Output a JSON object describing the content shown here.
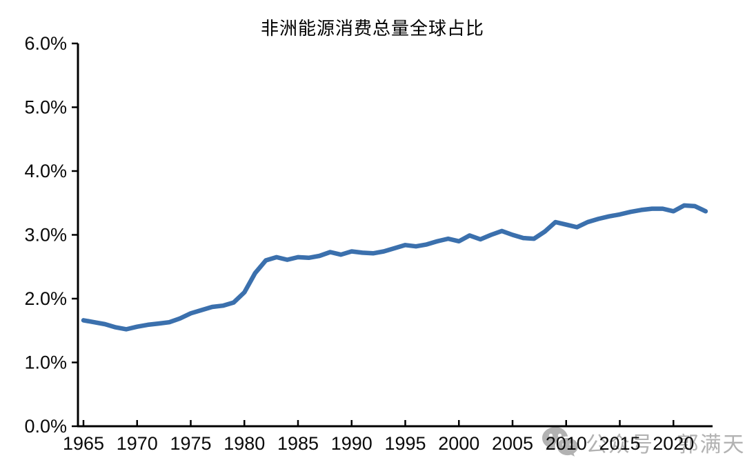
{
  "page": {
    "background": "#ffffff"
  },
  "chart_data": {
    "type": "line",
    "title": "非洲能源消费总量全球占比",
    "xlabel": "",
    "ylabel": "",
    "ylim": [
      0,
      6
    ],
    "xlim": [
      1965,
      2023
    ],
    "grid": false,
    "legend": "none",
    "line_color": "#3B70AD",
    "axis_color": "#000000",
    "y_ticks": [
      {
        "v": 6,
        "label": "6.0%"
      },
      {
        "v": 5,
        "label": "5.0%"
      },
      {
        "v": 4,
        "label": "4.0%"
      },
      {
        "v": 3,
        "label": "3.0%"
      },
      {
        "v": 2,
        "label": "2.0%"
      },
      {
        "v": 1,
        "label": "1.0%"
      },
      {
        "v": 0,
        "label": "0.0%"
      }
    ],
    "x_ticks": [
      {
        "v": 1965,
        "label": "1965"
      },
      {
        "v": 1970,
        "label": "1970"
      },
      {
        "v": 1975,
        "label": "1975"
      },
      {
        "v": 1980,
        "label": "1980"
      },
      {
        "v": 1985,
        "label": "1985"
      },
      {
        "v": 1990,
        "label": "1990"
      },
      {
        "v": 1995,
        "label": "1995"
      },
      {
        "v": 2000,
        "label": "2000"
      },
      {
        "v": 2005,
        "label": "2005"
      },
      {
        "v": 2010,
        "label": "2010"
      },
      {
        "v": 2015,
        "label": "2015"
      },
      {
        "v": 2020,
        "label": "2020"
      }
    ],
    "series": [
      {
        "name": "非洲能源消费总量全球占比",
        "x": [
          1965,
          1966,
          1967,
          1968,
          1969,
          1970,
          1971,
          1972,
          1973,
          1974,
          1975,
          1976,
          1977,
          1978,
          1979,
          1980,
          1981,
          1982,
          1983,
          1984,
          1985,
          1986,
          1987,
          1988,
          1989,
          1990,
          1991,
          1992,
          1993,
          1994,
          1995,
          1996,
          1997,
          1998,
          1999,
          2000,
          2001,
          2002,
          2003,
          2004,
          2005,
          2006,
          2007,
          2008,
          2009,
          2010,
          2011,
          2012,
          2013,
          2014,
          2015,
          2016,
          2017,
          2018,
          2019,
          2020,
          2021,
          2022,
          2023
        ],
        "values": [
          1.66,
          1.63,
          1.6,
          1.55,
          1.52,
          1.56,
          1.59,
          1.61,
          1.63,
          1.69,
          1.77,
          1.82,
          1.87,
          1.89,
          1.94,
          2.1,
          2.4,
          2.6,
          2.65,
          2.61,
          2.65,
          2.64,
          2.67,
          2.73,
          2.69,
          2.74,
          2.72,
          2.71,
          2.74,
          2.79,
          2.84,
          2.82,
          2.85,
          2.9,
          2.94,
          2.9,
          2.99,
          2.93,
          3.0,
          3.06,
          3.0,
          2.95,
          2.94,
          3.05,
          3.2,
          3.16,
          3.12,
          3.2,
          3.25,
          3.29,
          3.32,
          3.36,
          3.39,
          3.41,
          3.41,
          3.37,
          3.46,
          3.45,
          3.37
        ]
      }
    ]
  },
  "watermark": {
    "icon": "wechat-icon",
    "text": "公众号 · 郭满天",
    "color": "#b2b2b2"
  }
}
